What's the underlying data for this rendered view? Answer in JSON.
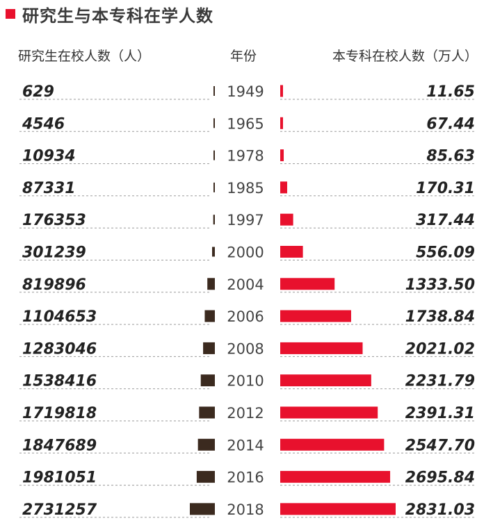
{
  "title": "研究生与本专科在学人数",
  "headers": {
    "left": "研究生在校人数（人）",
    "middle": "年份",
    "right": "本专科在校人数（万人）"
  },
  "colors": {
    "accent": "#e8112d",
    "graduate_bar": "#3b2a1f",
    "text": "#222222"
  },
  "chart_data": {
    "type": "bar",
    "layout": "butterfly",
    "categories": [
      "1949",
      "1965",
      "1978",
      "1985",
      "1997",
      "2000",
      "2004",
      "2006",
      "2008",
      "2010",
      "2012",
      "2014",
      "2016",
      "2018"
    ],
    "series": [
      {
        "name": "研究生在校人数（人）",
        "side": "left",
        "values": [
          629,
          4546,
          10934,
          87331,
          176353,
          301239,
          819896,
          1104653,
          1283046,
          1538416,
          1719818,
          1847689,
          1981051,
          2731257
        ]
      },
      {
        "name": "本专科在校人数（万人）",
        "side": "right",
        "values": [
          11.65,
          67.44,
          85.63,
          170.31,
          317.44,
          556.09,
          1333.5,
          1738.84,
          2021.02,
          2231.79,
          2391.31,
          2547.7,
          2695.84,
          2831.03
        ],
        "labels": [
          "11.65",
          "67.44",
          "85.63",
          "170.31",
          "317.44",
          "556.09",
          "1333.50",
          "1738.84",
          "2021.02",
          "2231.79",
          "2391.31",
          "2547.70",
          "2695.84",
          "2831.03"
        ]
      }
    ],
    "grid": false
  }
}
